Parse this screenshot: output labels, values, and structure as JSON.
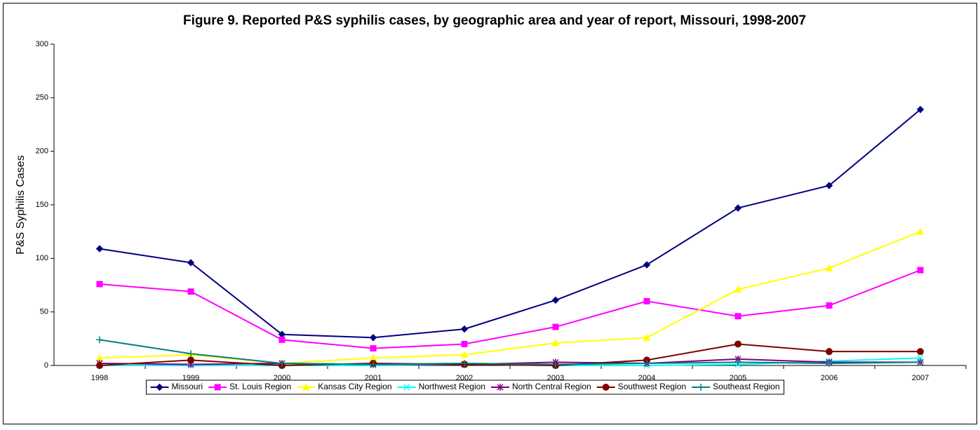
{
  "chart_data": {
    "type": "line",
    "title": "Figure 9.  Reported P&S syphilis cases, by geographic area and year of report, Missouri, 1998-2007",
    "y_label": "P&S Syphilis Cases",
    "categories": [
      "1998",
      "1999",
      "2000",
      "2001",
      "2002",
      "2003",
      "2004",
      "2005",
      "2006",
      "2007"
    ],
    "ylim": [
      0,
      300
    ],
    "yticks": [
      0,
      50,
      100,
      150,
      200,
      250,
      300
    ],
    "grid": false,
    "legend": "bottom",
    "series": [
      {
        "name": "Missouri",
        "color": "#000080",
        "marker": "diamond",
        "values": [
          109,
          96,
          29,
          26,
          34,
          61,
          94,
          147,
          168,
          239
        ]
      },
      {
        "name": "St. Louis Region",
        "color": "#ff00ff",
        "marker": "square",
        "values": [
          76,
          69,
          24,
          16,
          20,
          36,
          60,
          46,
          56,
          89
        ]
      },
      {
        "name": "Kansas City Region",
        "color": "#ffff00",
        "marker": "triangle",
        "values": [
          7,
          10,
          2,
          7,
          10,
          21,
          26,
          71,
          91,
          125
        ]
      },
      {
        "name": "Northwest Region",
        "color": "#00ffff",
        "marker": "x",
        "values": [
          0,
          0,
          0,
          0,
          1,
          0,
          0,
          1,
          4,
          7
        ]
      },
      {
        "name": "North Central Region",
        "color": "#800080",
        "marker": "star",
        "values": [
          2,
          1,
          2,
          1,
          1,
          3,
          2,
          6,
          3,
          3
        ]
      },
      {
        "name": "Southwest Region",
        "color": "#800000",
        "marker": "circle",
        "values": [
          0,
          5,
          0,
          2,
          1,
          0,
          5,
          20,
          13,
          13
        ]
      },
      {
        "name": "Southeast Region",
        "color": "#008080",
        "marker": "plus",
        "values": [
          24,
          11,
          2,
          1,
          2,
          1,
          2,
          3,
          2,
          3
        ]
      }
    ]
  }
}
